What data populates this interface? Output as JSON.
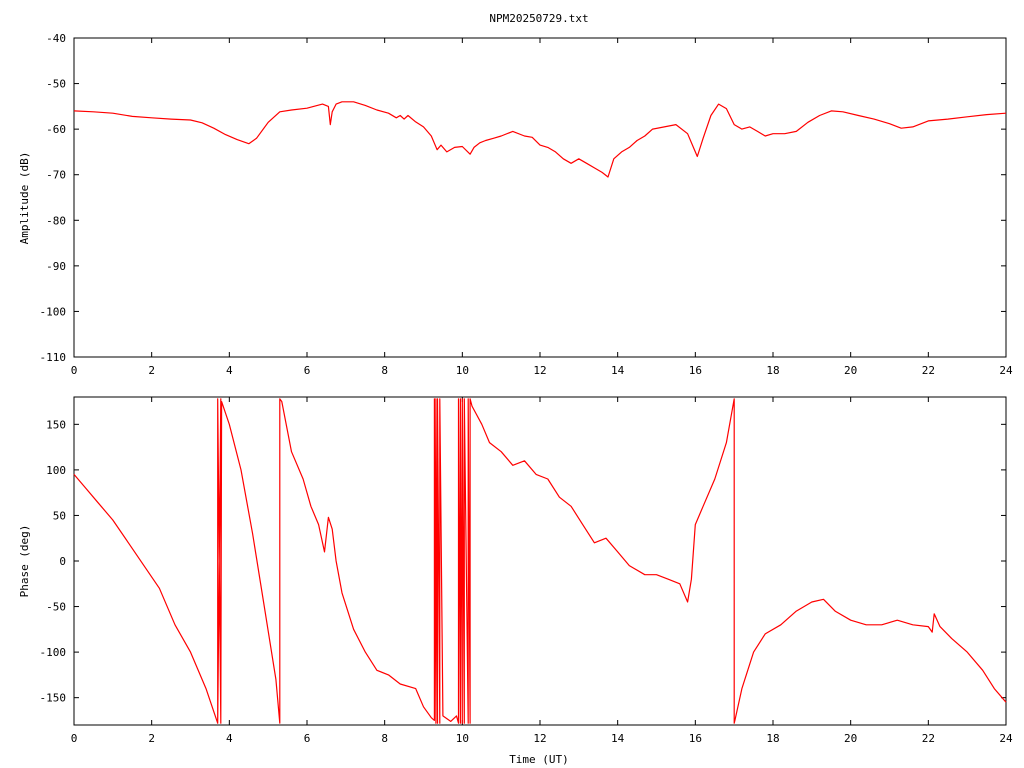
{
  "colors": {
    "trace": "#ff0000",
    "axis": "#000000",
    "background": "#ffffff"
  },
  "chart_data": [
    {
      "type": "line",
      "title": "NPM20250729.txt",
      "xlabel": "",
      "ylabel": "Amplitude (dB)",
      "xlim": [
        0,
        24
      ],
      "ylim": [
        -110,
        -40
      ],
      "x_ticks": [
        0,
        2,
        4,
        6,
        8,
        10,
        12,
        14,
        16,
        18,
        20,
        22,
        24
      ],
      "x_tick_labels": [
        "0",
        "2",
        "4",
        "6",
        "8",
        "10",
        "12",
        "14",
        "16",
        "18",
        "20",
        "22",
        "24"
      ],
      "y_ticks": [
        -110,
        -100,
        -90,
        -80,
        -70,
        -60,
        -50,
        -40
      ],
      "y_tick_labels": [
        "-110",
        "-100",
        "-90",
        "-80",
        "-70",
        "-60",
        "-50",
        "-40"
      ],
      "grid": false,
      "series": [
        {
          "x": [
            0,
            0.5,
            1,
            1.5,
            2,
            2.5,
            3,
            3.3,
            3.6,
            3.9,
            4.2,
            4.5,
            4.7,
            5.0,
            5.3,
            5.6,
            6.0,
            6.4,
            6.55,
            6.6,
            6.65,
            6.75,
            6.9,
            7.2,
            7.5,
            7.8,
            8.1,
            8.3,
            8.4,
            8.5,
            8.6,
            8.8,
            9.0,
            9.2,
            9.35,
            9.45,
            9.6,
            9.8,
            10.0,
            10.2,
            10.3,
            10.45,
            10.6,
            10.8,
            11.0,
            11.3,
            11.6,
            11.8,
            12.0,
            12.2,
            12.4,
            12.6,
            12.8,
            13.0,
            13.2,
            13.4,
            13.6,
            13.75,
            13.9,
            14.1,
            14.3,
            14.5,
            14.7,
            14.9,
            15.2,
            15.5,
            15.8,
            15.95,
            16.05,
            16.2,
            16.4,
            16.6,
            16.8,
            17.0,
            17.2,
            17.4,
            17.6,
            17.8,
            18.0,
            18.3,
            18.6,
            18.9,
            19.2,
            19.5,
            19.8,
            20.2,
            20.6,
            21.0,
            21.3,
            21.6,
            22.0,
            22.5,
            23.0,
            23.5,
            24.0
          ],
          "y": [
            -56,
            -56.2,
            -56.5,
            -57.2,
            -57.5,
            -57.8,
            -58,
            -58.6,
            -59.8,
            -61.2,
            -62.3,
            -63.2,
            -62,
            -58.5,
            -56.2,
            -55.8,
            -55.4,
            -54.5,
            -55,
            -59,
            -56.2,
            -54.5,
            -54,
            -54,
            -54.8,
            -55.8,
            -56.5,
            -57.5,
            -57,
            -57.8,
            -57,
            -58.4,
            -59.5,
            -61.5,
            -64.5,
            -63.5,
            -65,
            -64,
            -63.8,
            -65.5,
            -64,
            -63,
            -62.5,
            -62,
            -61.5,
            -60.5,
            -61.5,
            -61.8,
            -63.5,
            -64,
            -65,
            -66.5,
            -67.5,
            -66.5,
            -67.5,
            -68.5,
            -69.5,
            -70.5,
            -66.5,
            -65,
            -64,
            -62.5,
            -61.5,
            -60,
            -59.5,
            -59,
            -61,
            -64,
            -66,
            -62,
            -57,
            -54.5,
            -55.5,
            -59,
            -60,
            -59.5,
            -60.5,
            -61.5,
            -61,
            -61,
            -60.5,
            -58.5,
            -57,
            -56,
            -56.2,
            -57,
            -57.8,
            -58.8,
            -59.8,
            -59.5,
            -58.2,
            -57.8,
            -57.3,
            -56.8,
            -56.5
          ]
        }
      ]
    },
    {
      "type": "line",
      "title": "",
      "xlabel": "Time (UT)",
      "ylabel": "Phase (deg)",
      "xlim": [
        0,
        24
      ],
      "ylim": [
        -180,
        180
      ],
      "x_ticks": [
        0,
        2,
        4,
        6,
        8,
        10,
        12,
        14,
        16,
        18,
        20,
        22,
        24
      ],
      "x_tick_labels": [
        "0",
        "2",
        "4",
        "6",
        "8",
        "10",
        "12",
        "14",
        "16",
        "18",
        "20",
        "22",
        "24"
      ],
      "y_ticks": [
        -150,
        -100,
        -50,
        0,
        50,
        100,
        150
      ],
      "y_tick_labels": [
        "-150",
        "-100",
        "-50",
        "0",
        "50",
        "100",
        "150"
      ],
      "grid": false,
      "series": [
        {
          "x": [
            0,
            0.3,
            0.6,
            1.0,
            1.4,
            1.8,
            2.2,
            2.6,
            3.0,
            3.4,
            3.7,
            3.7,
            3.78,
            3.78,
            3.7,
            3.7,
            3.78,
            3.8,
            4.0,
            4.3,
            4.6,
            4.9,
            5.2,
            5.3,
            5.3,
            5.35,
            5.6,
            5.9,
            6.1,
            6.3,
            6.45,
            6.55,
            6.65,
            6.75,
            6.9,
            7.2,
            7.5,
            7.8,
            8.1,
            8.4,
            8.8,
            9.0,
            9.2,
            9.28,
            9.28,
            9.32,
            9.32,
            9.36,
            9.36,
            9.42,
            9.42,
            9.5,
            9.7,
            9.85,
            9.9,
            9.9,
            9.95,
            9.95,
            10.0,
            10.0,
            10.05,
            10.05,
            10.15,
            10.15,
            10.2,
            10.2,
            10.25,
            10.5,
            10.7,
            11.0,
            11.3,
            11.6,
            11.9,
            12.2,
            12.5,
            12.8,
            13.1,
            13.4,
            13.7,
            14.0,
            14.3,
            14.7,
            15.0,
            15.3,
            15.6,
            15.8,
            15.9,
            16.0,
            16.2,
            16.5,
            16.8,
            17.0,
            17.0,
            17.02,
            17.2,
            17.5,
            17.8,
            18.2,
            18.6,
            19.0,
            19.3,
            19.6,
            20.0,
            20.4,
            20.8,
            21.2,
            21.6,
            22.0,
            22.1,
            22.15,
            22.3,
            22.6,
            23.0,
            23.4,
            23.7,
            24.0
          ],
          "y": [
            95,
            80,
            65,
            45,
            20,
            -5,
            -30,
            -70,
            -100,
            -140,
            -178,
            178,
            -178,
            178,
            -178,
            178,
            -178,
            175,
            150,
            100,
            30,
            -50,
            -130,
            -178,
            178,
            175,
            120,
            90,
            60,
            40,
            10,
            48,
            35,
            0,
            -35,
            -75,
            -100,
            -120,
            -125,
            -135,
            -140,
            -160,
            -172,
            -175,
            178,
            -178,
            178,
            -178,
            178,
            -178,
            178,
            -170,
            -176,
            -170,
            -178,
            178,
            -178,
            178,
            -178,
            178,
            -178,
            178,
            -178,
            178,
            -178,
            178,
            170,
            150,
            130,
            120,
            105,
            110,
            95,
            90,
            70,
            60,
            40,
            20,
            25,
            10,
            -5,
            -15,
            -15,
            -20,
            -25,
            -45,
            -20,
            40,
            60,
            90,
            130,
            178,
            -178,
            -175,
            -140,
            -100,
            -80,
            -70,
            -55,
            -45,
            -42,
            -55,
            -65,
            -70,
            -70,
            -65,
            -70,
            -72,
            -78,
            -58,
            -72,
            -85,
            -100,
            -120,
            -140,
            -155
          ]
        }
      ]
    }
  ]
}
